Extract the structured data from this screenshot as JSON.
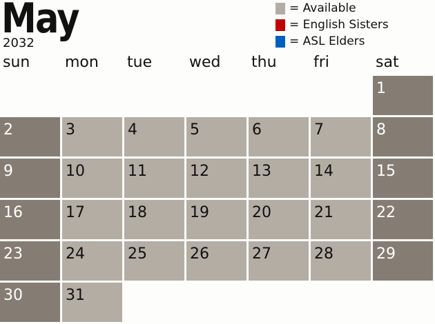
{
  "header": {
    "month": "May",
    "year": "2032"
  },
  "legend": [
    {
      "label": "= Available",
      "color": "#b3ada4"
    },
    {
      "label": "= English Sisters",
      "color": "#c00000"
    },
    {
      "label": "= ASL Elders",
      "color": "#0060c0"
    }
  ],
  "weekdays": [
    "sun",
    "mon",
    "tue",
    "wed",
    "thu",
    "fri",
    "sat"
  ],
  "colors": {
    "weekend": "#857d73",
    "available": "#b3ada4"
  },
  "first_weekday_index": 6,
  "days": [
    "1",
    "2",
    "3",
    "4",
    "5",
    "6",
    "7",
    "8",
    "9",
    "10",
    "11",
    "12",
    "13",
    "14",
    "15",
    "16",
    "17",
    "18",
    "19",
    "20",
    "21",
    "22",
    "23",
    "24",
    "25",
    "26",
    "27",
    "28",
    "29",
    "30",
    "31"
  ]
}
